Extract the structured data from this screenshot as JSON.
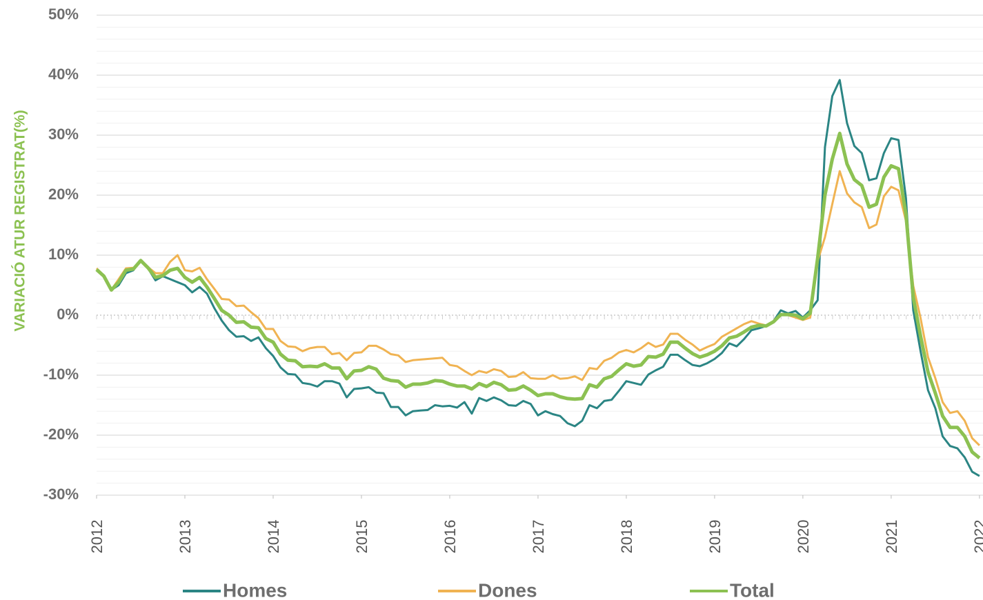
{
  "chart_data": {
    "type": "line",
    "y_label": "VARIACIÓ ATUR REGISTRAT(%)",
    "x": [
      2012,
      2012.083,
      2012.167,
      2012.25,
      2012.333,
      2012.417,
      2012.5,
      2012.583,
      2012.667,
      2012.75,
      2012.833,
      2012.917,
      2013,
      2013.083,
      2013.167,
      2013.25,
      2013.333,
      2013.417,
      2013.5,
      2013.583,
      2013.667,
      2013.75,
      2013.833,
      2013.917,
      2014,
      2014.083,
      2014.167,
      2014.25,
      2014.333,
      2014.417,
      2014.5,
      2014.583,
      2014.667,
      2014.75,
      2014.833,
      2014.917,
      2015,
      2015.083,
      2015.167,
      2015.25,
      2015.333,
      2015.417,
      2015.5,
      2015.583,
      2015.667,
      2015.75,
      2015.833,
      2015.917,
      2016,
      2016.083,
      2016.167,
      2016.25,
      2016.333,
      2016.417,
      2016.5,
      2016.583,
      2016.667,
      2016.75,
      2016.833,
      2016.917,
      2017,
      2017.083,
      2017.167,
      2017.25,
      2017.333,
      2017.417,
      2017.5,
      2017.583,
      2017.667,
      2017.75,
      2017.833,
      2017.917,
      2018,
      2018.083,
      2018.167,
      2018.25,
      2018.333,
      2018.417,
      2018.5,
      2018.583,
      2018.667,
      2018.75,
      2018.833,
      2018.917,
      2019,
      2019.083,
      2019.167,
      2019.25,
      2019.333,
      2019.417,
      2019.5,
      2019.583,
      2019.667,
      2019.75,
      2019.833,
      2019.917,
      2020,
      2020.083,
      2020.167,
      2020.25,
      2020.333,
      2020.417,
      2020.5,
      2020.583,
      2020.667,
      2020.75,
      2020.833,
      2020.917,
      2021,
      2021.083,
      2021.167,
      2021.25,
      2021.333,
      2021.417,
      2021.5,
      2021.583,
      2021.667,
      2021.75,
      2021.833,
      2021.917,
      2022
    ],
    "series": [
      {
        "name": "Homes",
        "color": "#2b8584",
        "width": 3,
        "values": [
          7.5,
          6.5,
          4.2,
          5,
          7,
          7.5,
          9.2,
          7.8,
          5.8,
          6.5,
          6,
          5.5,
          5,
          3.8,
          4.7,
          3.6,
          1.2,
          -0.9,
          -2.5,
          -3.6,
          -3.5,
          -4.3,
          -3.7,
          -5.5,
          -6.8,
          -8.7,
          -9.8,
          -9.9,
          -11.3,
          -11.5,
          -11.9,
          -11,
          -11,
          -11.4,
          -13.7,
          -12.3,
          -12.2,
          -12,
          -12.9,
          -13,
          -15.3,
          -15.3,
          -16.7,
          -16,
          -15.9,
          -15.8,
          -15,
          -15.2,
          -15.1,
          -15.4,
          -14.5,
          -16.4,
          -13.8,
          -14.3,
          -13.7,
          -14.2,
          -15,
          -15.1,
          -14.3,
          -14.8,
          -16.7,
          -16,
          -16.5,
          -16.8,
          -18,
          -18.5,
          -17.6,
          -15,
          -15.5,
          -14.3,
          -14.1,
          -12.6,
          -11,
          -11.3,
          -11.6,
          -9.9,
          -9.2,
          -8.6,
          -6.6,
          -6.6,
          -7.5,
          -8.3,
          -8.5,
          -8,
          -7.3,
          -6.3,
          -4.7,
          -5.2,
          -4,
          -2.5,
          -2.2,
          -1.8,
          -1,
          0.8,
          0.3,
          0.7,
          -0.4,
          0.8,
          2.5,
          28,
          36.5,
          39.2,
          32,
          28.2,
          27,
          22.5,
          22.8,
          27,
          29.5,
          29.2,
          19.5,
          0.8,
          -6,
          -12.5,
          -15.5,
          -20.2,
          -21.8,
          -22.2,
          -23.7,
          -26.1,
          -26.8
        ]
      },
      {
        "name": "Dones",
        "color": "#f0b352",
        "width": 3,
        "values": [
          7.8,
          6.6,
          4.2,
          6,
          7.8,
          7.9,
          9,
          8,
          7,
          7,
          8.9,
          10,
          7.5,
          7.3,
          7.9,
          6,
          4.4,
          2.7,
          2.6,
          1.5,
          1.6,
          0.5,
          -0.5,
          -2.3,
          -2.3,
          -4.3,
          -5.2,
          -5.3,
          -6,
          -5.5,
          -5.3,
          -5.3,
          -6.5,
          -6.3,
          -7.5,
          -6.3,
          -6.2,
          -5.1,
          -5.1,
          -5.7,
          -6.5,
          -6.7,
          -7.8,
          -7.5,
          -7.4,
          -7.3,
          -7.2,
          -7.1,
          -8.3,
          -8.5,
          -9.3,
          -10,
          -9.3,
          -9.6,
          -9,
          -9.3,
          -10.3,
          -10.2,
          -9.5,
          -10.5,
          -10.6,
          -10.6,
          -10,
          -10.6,
          -10.5,
          -10.2,
          -10.8,
          -8.8,
          -9,
          -7.6,
          -7.1,
          -6.2,
          -5.8,
          -6.2,
          -5.5,
          -4.6,
          -5.3,
          -4.9,
          -3.1,
          -3.1,
          -4.1,
          -4.9,
          -5.9,
          -5.3,
          -4.8,
          -3.6,
          -2.9,
          -2.2,
          -1.5,
          -1,
          -1.4,
          -1.7,
          -1.1,
          0,
          0,
          -0.4,
          -0.8,
          -0.4,
          9,
          13,
          18.5,
          24,
          20.3,
          18.8,
          18,
          14.5,
          15.1,
          19.8,
          21.4,
          20.8,
          15.7,
          4.9,
          -0.5,
          -7,
          -10.5,
          -14.5,
          -16.3,
          -16,
          -17.6,
          -20.5,
          -21.7
        ]
      },
      {
        "name": "Total",
        "color": "#8cc152",
        "width": 5,
        "values": [
          7.6,
          6.5,
          4.2,
          5.5,
          7.5,
          7.7,
          9.1,
          7.9,
          6.3,
          6.6,
          7.5,
          7.8,
          6.3,
          5.5,
          6.3,
          4.7,
          2.8,
          0.8,
          0,
          -1.2,
          -1.1,
          -2,
          -2.1,
          -3.9,
          -4.5,
          -6.5,
          -7.5,
          -7.6,
          -8.6,
          -8.5,
          -8.6,
          -8.1,
          -8.8,
          -8.8,
          -10.6,
          -9.3,
          -9.2,
          -8.6,
          -9,
          -10.5,
          -10.9,
          -11,
          -12,
          -11.5,
          -11.5,
          -11.3,
          -10.9,
          -11,
          -11.5,
          -11.8,
          -11.8,
          -12.3,
          -11.4,
          -11.9,
          -11.2,
          -11.6,
          -12.5,
          -12.4,
          -11.8,
          -12.5,
          -13.4,
          -13.1,
          -13.1,
          -13.6,
          -13.9,
          -14,
          -13.9,
          -11.6,
          -12,
          -10.6,
          -10.2,
          -9.1,
          -8.1,
          -8.5,
          -8.3,
          -6.9,
          -7,
          -6.5,
          -4.5,
          -4.5,
          -5.5,
          -6.4,
          -7,
          -6.6,
          -6,
          -5.1,
          -3.8,
          -3.5,
          -2.8,
          -2,
          -1.7,
          -1.8,
          -1.1,
          0.1,
          0.1,
          0,
          -0.6,
          0.3,
          9.5,
          20,
          26,
          30.3,
          25.2,
          22.6,
          21.6,
          18,
          18.5,
          23,
          24.9,
          24.4,
          16.8,
          3,
          -3.5,
          -9.5,
          -13,
          -16.8,
          -18.7,
          -18.7,
          -20.2,
          -22.8,
          -23.8
        ]
      }
    ],
    "xlim": [
      2012,
      2022.04
    ],
    "xticks": [
      2012,
      2013,
      2014,
      2015,
      2016,
      2017,
      2018,
      2019,
      2020,
      2021,
      2022
    ],
    "ylim": [
      -30,
      50
    ],
    "yticks": [
      {
        "value": -30,
        "label": "-30%"
      },
      {
        "value": -20,
        "label": "-20%"
      },
      {
        "value": -10,
        "label": "-10%"
      },
      {
        "value": 0,
        "label": "0%"
      },
      {
        "value": 10,
        "label": "10%"
      },
      {
        "value": 20,
        "label": "20%"
      },
      {
        "value": 30,
        "label": "30%"
      },
      {
        "value": 40,
        "label": "40%"
      },
      {
        "value": 50,
        "label": "50%"
      }
    ],
    "grid": true,
    "legend": "bottom"
  }
}
